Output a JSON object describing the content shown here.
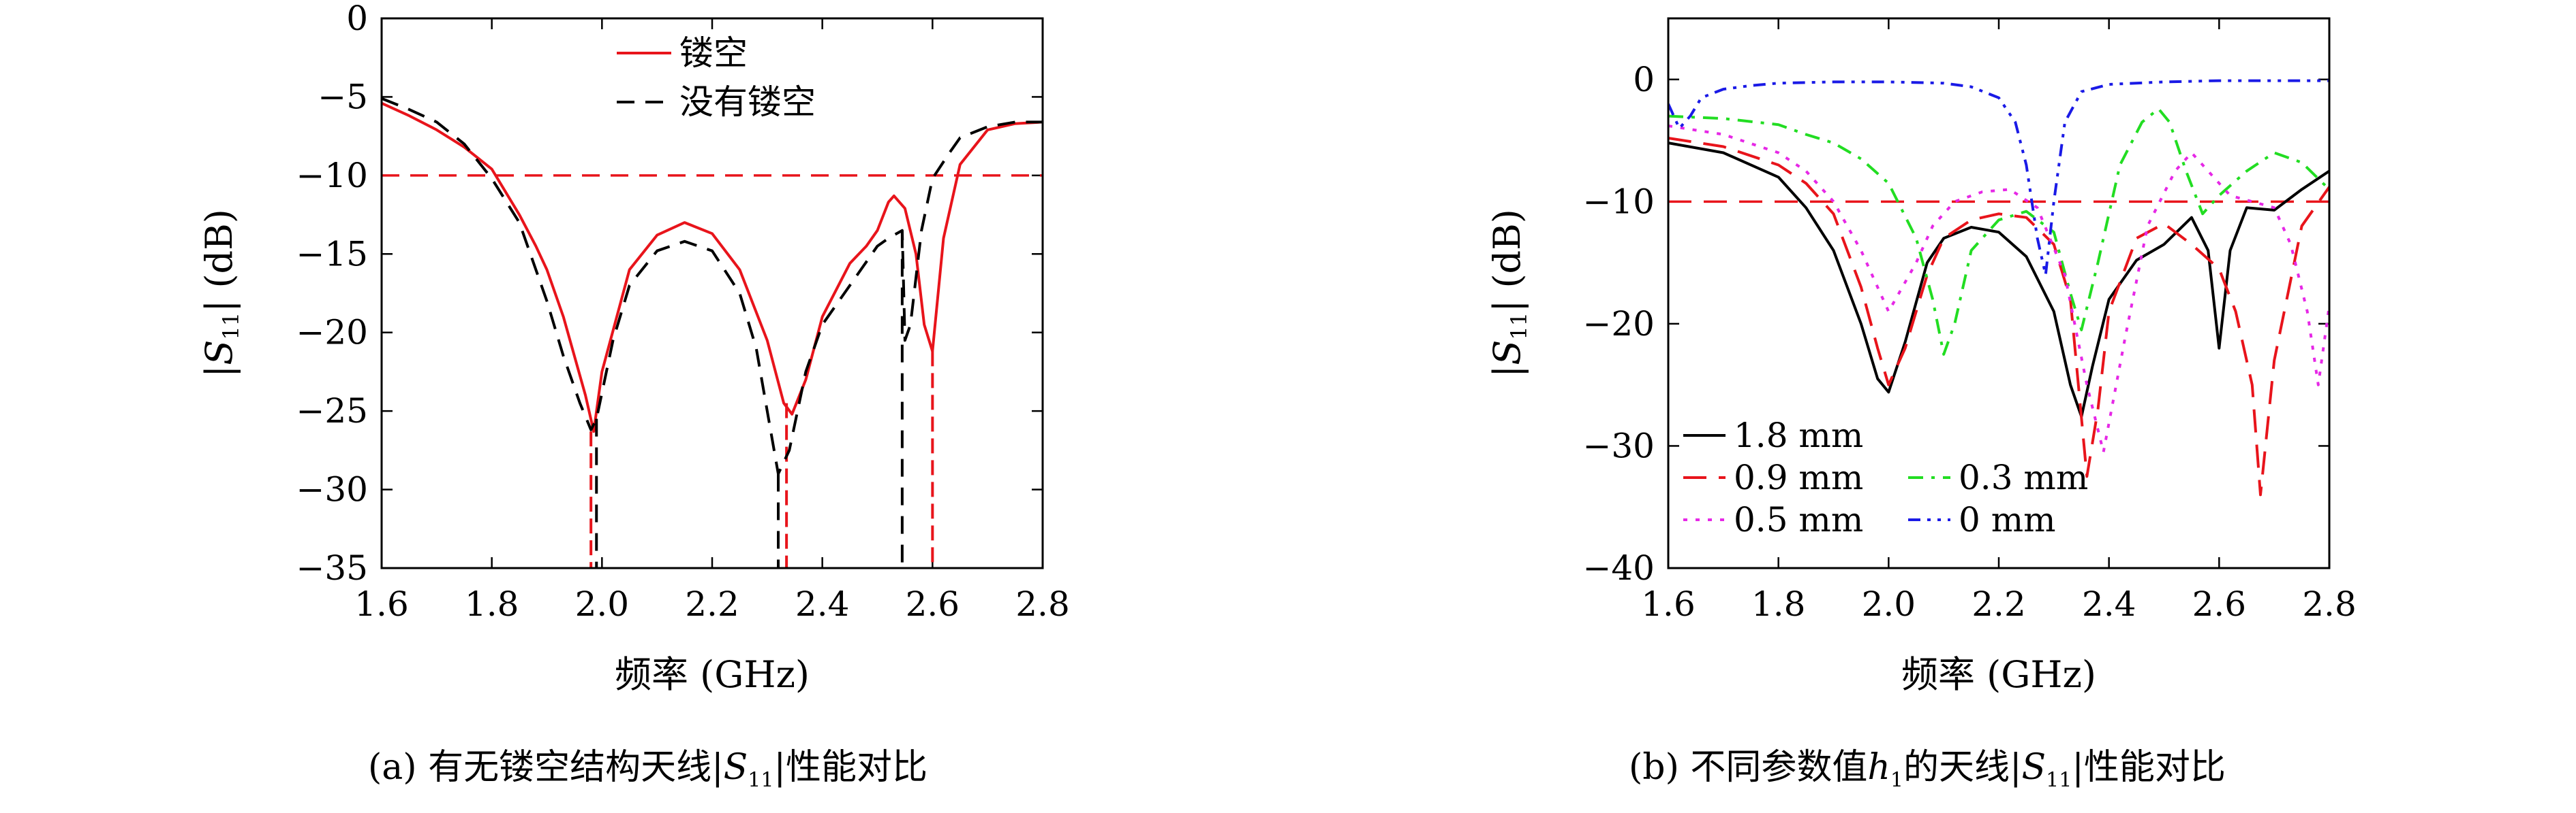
{
  "chart_data": [
    {
      "type": "line",
      "xlabel": "频率 (GHz)",
      "ylabel_parts": [
        "|",
        "S",
        "11",
        "| (dB)"
      ],
      "xlim": [
        1.6,
        2.8
      ],
      "ylim": [
        -35,
        0
      ],
      "xticks": [
        1.6,
        1.8,
        2.0,
        2.2,
        2.4,
        2.6,
        2.8
      ],
      "yticks": [
        0,
        -5,
        -10,
        -15,
        -20,
        -25,
        -30,
        -35
      ],
      "xtick_labels": [
        "1.6",
        "1.8",
        "2.0",
        "2.2",
        "2.4",
        "2.6",
        "2.8"
      ],
      "ytick_labels": [
        "0",
        "−5",
        "−10",
        "−15",
        "−20",
        "−25",
        "−30",
        "−35"
      ],
      "grid": false,
      "legend_position": "top-center",
      "reference_line": {
        "y": -10,
        "color": "#e8141b",
        "dash": "dashed"
      },
      "series": [
        {
          "name": "镂空",
          "color": "#e8141b",
          "dash": "solid",
          "x": [
            1.6,
            1.65,
            1.7,
            1.75,
            1.8,
            1.85,
            1.88,
            1.9,
            1.93,
            1.95,
            1.97,
            1.985,
            2.0,
            2.05,
            2.1,
            2.15,
            2.2,
            2.25,
            2.3,
            2.33,
            2.345,
            2.37,
            2.4,
            2.45,
            2.48,
            2.5,
            2.52,
            2.53,
            2.55,
            2.57,
            2.585,
            2.6,
            2.62,
            2.65,
            2.7,
            2.75,
            2.8
          ],
          "y": [
            -5.4,
            -6.2,
            -7.1,
            -8.2,
            -9.6,
            -12.5,
            -14.5,
            -16,
            -19,
            -21.5,
            -24,
            -26.3,
            -22.5,
            -16,
            -13.8,
            -13,
            -13.7,
            -16,
            -20.5,
            -24.5,
            -25.2,
            -23,
            -19,
            -15.6,
            -14.5,
            -13.5,
            -11.7,
            -11.3,
            -12.1,
            -15,
            -19.5,
            -21.2,
            -14,
            -9.3,
            -7.1,
            -6.7,
            -6.6
          ],
          "drops": [
            1.98,
            2.335,
            2.6
          ]
        },
        {
          "name": "没有镂空",
          "color": "#000000",
          "dash": "dashed",
          "x": [
            1.6,
            1.65,
            1.7,
            1.75,
            1.8,
            1.85,
            1.9,
            1.93,
            1.96,
            1.98,
            1.99,
            2.02,
            2.05,
            2.1,
            2.15,
            2.2,
            2.25,
            2.28,
            2.3,
            2.32,
            2.34,
            2.37,
            2.4,
            2.45,
            2.5,
            2.52,
            2.545,
            2.55,
            2.56,
            2.58,
            2.6,
            2.63,
            2.65,
            2.7,
            2.75,
            2.8
          ],
          "y": [
            -5.1,
            -5.8,
            -6.6,
            -8,
            -10.2,
            -13,
            -18,
            -21.5,
            -24.5,
            -26.2,
            -25.5,
            -20.5,
            -17,
            -14.8,
            -14.2,
            -14.8,
            -17.5,
            -21,
            -25,
            -29,
            -27.5,
            -22.5,
            -19.5,
            -17,
            -14.5,
            -14,
            -13.5,
            -20.5,
            -19.5,
            -13.5,
            -10.2,
            -8.6,
            -7.6,
            -6.9,
            -6.6,
            -6.6
          ],
          "drops": [
            1.99,
            2.32,
            2.545
          ]
        }
      ]
    },
    {
      "type": "line",
      "xlabel": "频率 (GHz)",
      "ylabel_parts": [
        "|",
        "S",
        "11",
        "| (dB)"
      ],
      "xlim": [
        1.6,
        2.8
      ],
      "ylim": [
        -40,
        5
      ],
      "xticks": [
        1.6,
        1.8,
        2.0,
        2.2,
        2.4,
        2.6,
        2.8
      ],
      "yticks": [
        0,
        -10,
        -20,
        -30,
        -40
      ],
      "xtick_labels": [
        "1.6",
        "1.8",
        "2.0",
        "2.2",
        "2.4",
        "2.6",
        "2.8"
      ],
      "ytick_labels": [
        "0",
        "−10",
        "−20",
        "−30",
        "−40"
      ],
      "grid": false,
      "legend_position": "bottom-left",
      "reference_line": {
        "y": -10,
        "color": "#e8141b",
        "dash": "long-dashed"
      },
      "series": [
        {
          "name": "1.8 mm",
          "color": "#000000",
          "dash": "solid",
          "x": [
            1.6,
            1.7,
            1.8,
            1.85,
            1.9,
            1.95,
            1.98,
            2.0,
            2.03,
            2.07,
            2.1,
            2.15,
            2.2,
            2.25,
            2.3,
            2.33,
            2.35,
            2.37,
            2.4,
            2.45,
            2.5,
            2.55,
            2.58,
            2.6,
            2.62,
            2.65,
            2.7,
            2.75,
            2.8
          ],
          "y": [
            -5.2,
            -6,
            -8,
            -10.5,
            -14,
            -20,
            -24.5,
            -25.6,
            -21.5,
            -15,
            -13,
            -12.1,
            -12.5,
            -14.5,
            -19,
            -25,
            -27.6,
            -23.5,
            -18,
            -14.8,
            -13.5,
            -11.3,
            -14,
            -22,
            -14,
            -10.5,
            -10.7,
            -9,
            -7.5
          ]
        },
        {
          "name": "0.9 mm",
          "color": "#e8141b",
          "dash": "long-dashed",
          "x": [
            1.6,
            1.7,
            1.8,
            1.85,
            1.9,
            1.95,
            1.98,
            2.0,
            2.03,
            2.07,
            2.1,
            2.15,
            2.2,
            2.25,
            2.3,
            2.33,
            2.36,
            2.38,
            2.4,
            2.45,
            2.5,
            2.55,
            2.6,
            2.63,
            2.66,
            2.675,
            2.7,
            2.75,
            2.8
          ],
          "y": [
            -4.8,
            -5.5,
            -7,
            -8.5,
            -11,
            -17,
            -22,
            -25,
            -22,
            -16,
            -13,
            -11.5,
            -11,
            -11.3,
            -13.5,
            -18,
            -32.5,
            -27,
            -19,
            -13,
            -11.8,
            -13.5,
            -15.5,
            -19,
            -25,
            -34,
            -23,
            -12,
            -8.8
          ]
        },
        {
          "name": "0.3 mm",
          "color": "#22dd22",
          "dash": "dash-dot",
          "x": [
            1.6,
            1.7,
            1.8,
            1.85,
            1.9,
            1.95,
            2.0,
            2.05,
            2.08,
            2.1,
            2.12,
            2.15,
            2.2,
            2.25,
            2.3,
            2.33,
            2.35,
            2.38,
            2.42,
            2.46,
            2.49,
            2.51,
            2.54,
            2.57,
            2.6,
            2.65,
            2.7,
            2.75,
            2.8
          ],
          "y": [
            -3,
            -3.2,
            -3.7,
            -4.5,
            -5.2,
            -6.5,
            -8.5,
            -13,
            -18,
            -22.5,
            -20,
            -14,
            -11.5,
            -10.8,
            -12.5,
            -17.5,
            -20.5,
            -15,
            -7,
            -3.5,
            -2.4,
            -3.5,
            -7.5,
            -11,
            -9.5,
            -7.5,
            -6,
            -6.8,
            -9
          ]
        },
        {
          "name": "0.5 mm",
          "color": "#e628e6",
          "dash": "dotted",
          "x": [
            1.6,
            1.7,
            1.8,
            1.85,
            1.9,
            1.95,
            2.0,
            2.05,
            2.08,
            2.12,
            2.17,
            2.22,
            2.27,
            2.32,
            2.36,
            2.39,
            2.43,
            2.47,
            2.52,
            2.55,
            2.58,
            2.62,
            2.66,
            2.7,
            2.73,
            2.76,
            2.78,
            2.8
          ],
          "y": [
            -3.8,
            -4.5,
            -6,
            -7.5,
            -10,
            -14,
            -19,
            -15,
            -12,
            -10,
            -9.2,
            -9,
            -10.5,
            -16,
            -25,
            -30.5,
            -21,
            -12,
            -7.5,
            -6,
            -7.5,
            -9.5,
            -10,
            -10.5,
            -13.5,
            -19,
            -25,
            -18.5
          ]
        },
        {
          "name": "0 mm",
          "color": "#1a1ae6",
          "dash": "dash-dot-dot",
          "x": [
            1.6,
            1.62,
            1.64,
            1.66,
            1.7,
            1.75,
            1.8,
            1.9,
            2.0,
            2.1,
            2.15,
            2.2,
            2.23,
            2.25,
            2.27,
            2.285,
            2.3,
            2.32,
            2.35,
            2.4,
            2.5,
            2.6,
            2.7,
            2.8
          ],
          "y": [
            -2,
            -4,
            -3,
            -1.5,
            -0.8,
            -0.5,
            -0.3,
            -0.2,
            -0.2,
            -0.3,
            -0.6,
            -1.5,
            -3.5,
            -7,
            -13,
            -16,
            -10,
            -3.5,
            -1,
            -0.4,
            -0.2,
            -0.1,
            -0.1,
            -0.1
          ]
        }
      ]
    }
  ],
  "captions": [
    {
      "prefix": "(a) 有无镂空结构天线|",
      "sym": "S",
      "sub": "11",
      "suffix": "|性能对比"
    },
    {
      "prefix": "(b) 不同参数值",
      "sym_h": "h",
      "sub_h": "1",
      "middle": "的天线|",
      "sym": "S",
      "sub": "11",
      "suffix": "|性能对比"
    }
  ]
}
